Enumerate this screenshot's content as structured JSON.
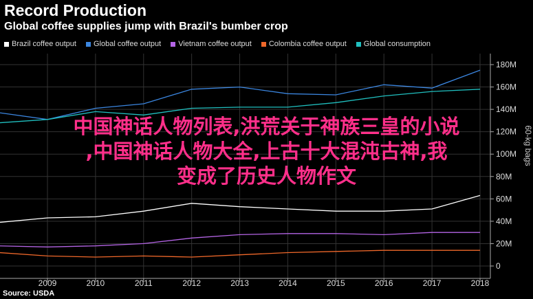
{
  "header": {
    "title": "Record Production",
    "subtitle": "Global coffee supplies jump with Brazil's bumber crop"
  },
  "source": "Source: USDA",
  "overlay_text": [
    "中国神话人物列表,洪荒关于神族三皇的小说",
    ",中国神话人物大全,上古十大混沌古神,我",
    "变成了历史人物作文"
  ],
  "chart_data": {
    "type": "line",
    "x": [
      2008,
      2009,
      2010,
      2011,
      2012,
      2013,
      2014,
      2015,
      2016,
      2017,
      2018
    ],
    "xticks": [
      "2009",
      "2010",
      "2011",
      "2012",
      "2013",
      "2014",
      "2015",
      "2016",
      "2017",
      "2018"
    ],
    "ylabel": "60-kg bags",
    "yticks": [
      "0",
      "20M",
      "40M",
      "60M",
      "80M",
      "100M",
      "120M",
      "140M",
      "160M",
      "180M"
    ],
    "ylim": [
      0,
      190
    ],
    "series": [
      {
        "name": "Brazil coffee output",
        "color": "#ffffff",
        "values": [
          39,
          43,
          44,
          49,
          56,
          53,
          51,
          49,
          49,
          51,
          63
        ]
      },
      {
        "name": "Global coffee output",
        "color": "#3b86e0",
        "values": [
          137,
          131,
          141,
          145,
          158,
          160,
          154,
          153,
          162,
          159,
          175
        ]
      },
      {
        "name": "Vietnam coffee output",
        "color": "#b565e6",
        "values": [
          18,
          17,
          18,
          20,
          25,
          28,
          29,
          29,
          28,
          30,
          30
        ]
      },
      {
        "name": "Colombia coffee output",
        "color": "#f0682a",
        "values": [
          12,
          9,
          8,
          9,
          8,
          10,
          12,
          13,
          14,
          14,
          14
        ]
      },
      {
        "name": "Global consumption",
        "color": "#20c0c0",
        "values": [
          128,
          131,
          138,
          135,
          141,
          142,
          142,
          146,
          152,
          156,
          158
        ]
      }
    ]
  }
}
